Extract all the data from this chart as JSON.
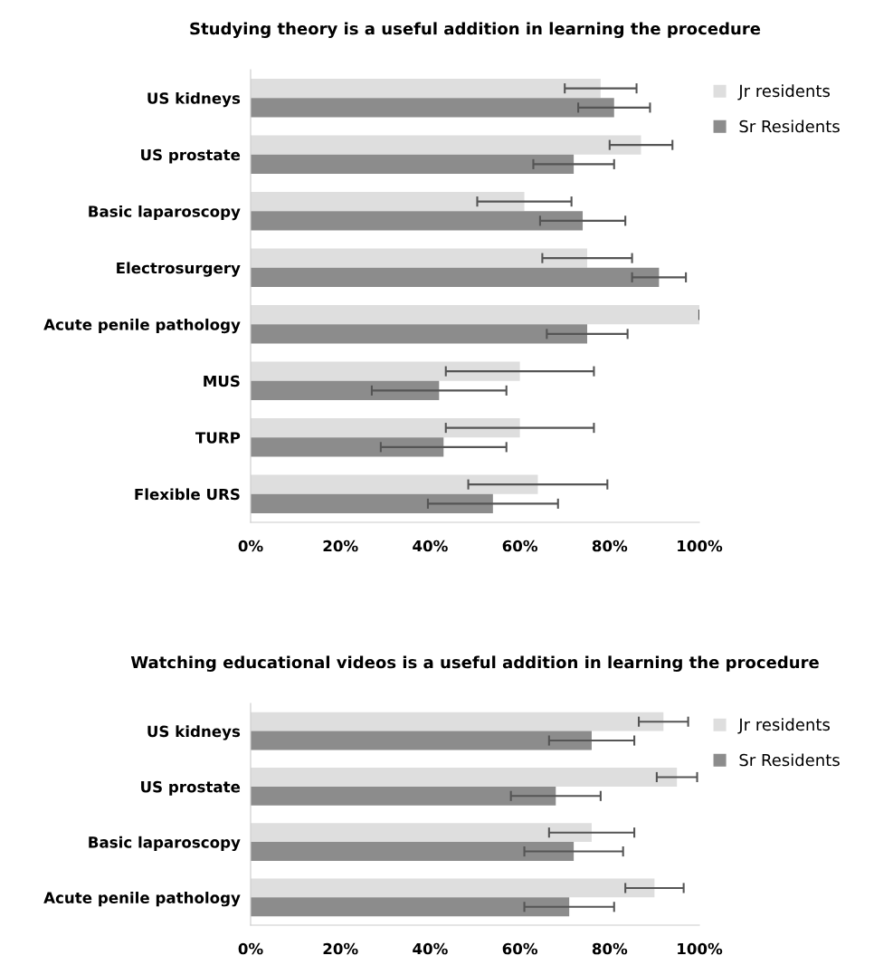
{
  "chart_data": [
    {
      "type": "bar",
      "orientation": "horizontal",
      "title": "Studying theory is a useful addition in learning the procedure",
      "categories": [
        "US kidneys",
        "US prostate",
        "Basic laparoscopy",
        "Electrosurgery",
        "Acute penile pathology",
        "MUS",
        "TURP",
        "Flexible URS"
      ],
      "series": [
        {
          "name": "Jr residents",
          "color": "#dedede",
          "values": [
            78,
            87,
            61,
            75,
            100,
            60,
            60,
            64
          ],
          "errors": [
            8,
            7,
            10.5,
            10,
            0,
            16.5,
            16.5,
            15.5
          ]
        },
        {
          "name": "Sr Residents",
          "color": "#8c8c8c",
          "values": [
            81,
            72,
            74,
            91,
            75,
            42,
            43,
            54
          ],
          "errors": [
            8,
            9,
            9.5,
            6,
            9,
            15,
            14,
            14.5
          ]
        }
      ],
      "xlim": [
        0,
        100
      ],
      "xticks": [
        {
          "value": 0,
          "label": "0%"
        },
        {
          "value": 20,
          "label": "20%"
        },
        {
          "value": 40,
          "label": "40%"
        },
        {
          "value": 60,
          "label": "60%"
        },
        {
          "value": 80,
          "label": "80%"
        },
        {
          "value": 100,
          "label": "100%"
        }
      ],
      "grid": false,
      "legend": "top right"
    },
    {
      "type": "bar",
      "orientation": "horizontal",
      "title": "Watching educational videos is a useful addition in learning the procedure",
      "categories": [
        "US kidneys",
        "US prostate",
        "Basic laparoscopy",
        "Acute penile pathology"
      ],
      "series": [
        {
          "name": "Jr residents",
          "color": "#dedede",
          "values": [
            92,
            95,
            76,
            90
          ],
          "errors": [
            5.5,
            4.5,
            9.5,
            6.5
          ]
        },
        {
          "name": "Sr Residents",
          "color": "#8c8c8c",
          "values": [
            76,
            68,
            72,
            71
          ],
          "errors": [
            9.5,
            10,
            11,
            10
          ]
        }
      ],
      "xlim": [
        0,
        100
      ],
      "xticks": [
        {
          "value": 0,
          "label": "0%"
        },
        {
          "value": 20,
          "label": "20%"
        },
        {
          "value": 40,
          "label": "40%"
        },
        {
          "value": 60,
          "label": "60%"
        },
        {
          "value": 80,
          "label": "80%"
        },
        {
          "value": 100,
          "label": "100%"
        }
      ],
      "grid": false,
      "legend": "top right"
    }
  ]
}
